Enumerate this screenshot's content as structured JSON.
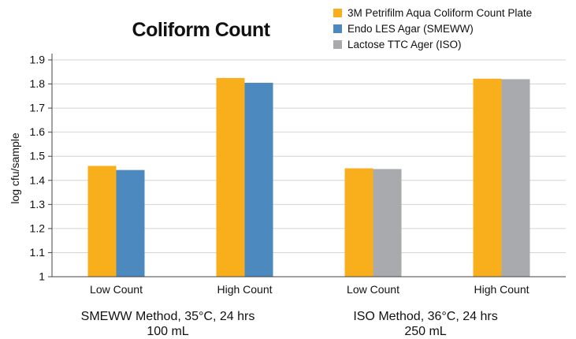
{
  "chart_data": {
    "type": "bar",
    "title": "Coliform Count",
    "ylabel": "log cfu/sample",
    "ylim": [
      1,
      1.9
    ],
    "yticks": [
      "1",
      "1.1",
      "1.2",
      "1.3",
      "1.4",
      "1.5",
      "1.6",
      "1.7",
      "1.8",
      "1.9"
    ],
    "grid": true,
    "legend_position": "top-right",
    "categories": [
      "Low Count",
      "High Count",
      "Low Count",
      "High Count"
    ],
    "groups": [
      {
        "line1": "SMEWW Method, 35°C, 24 hrs",
        "line2": "100 mL"
      },
      {
        "line1": "ISO Method, 36°C, 24 hrs",
        "line2": "250 mL"
      }
    ],
    "series": [
      {
        "name": "3M Petrifilm Aqua Coliform Count Plate",
        "color": "#F9AE1B",
        "values": [
          1.46,
          1.825,
          1.45,
          1.822
        ]
      },
      {
        "name": "Endo LES Agar (SMEWW)",
        "color": "#4B89BF",
        "values": [
          1.443,
          1.805,
          null,
          null
        ]
      },
      {
        "name": "Lactose TTC Ager (ISO)",
        "color": "#A8AAAD",
        "values": [
          null,
          null,
          1.447,
          1.82
        ]
      }
    ]
  }
}
